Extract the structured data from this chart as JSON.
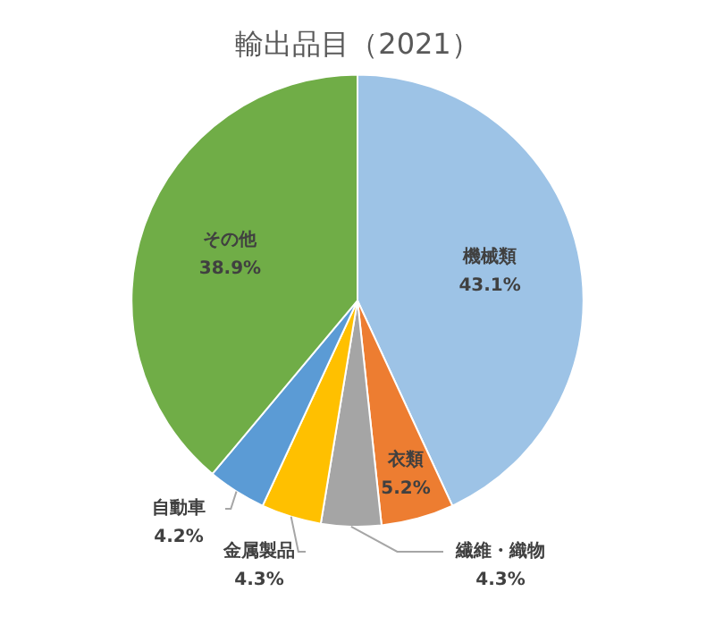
{
  "chart_data": {
    "type": "pie",
    "title": "輸出品目（2021）",
    "categories": [
      "機械類",
      "衣類",
      "繊維・織物",
      "金属製品",
      "自動車",
      "その他"
    ],
    "values": [
      43.1,
      5.2,
      4.3,
      4.3,
      4.2,
      38.9
    ],
    "value_labels": [
      "43.1%",
      "5.2%",
      "4.3%",
      "4.3%",
      "4.2%",
      "38.9%"
    ],
    "colors": [
      "#9dc3e6",
      "#ed7d31",
      "#a5a5a5",
      "#ffc000",
      "#5b9bd5",
      "#70ad47"
    ],
    "legend": false
  }
}
